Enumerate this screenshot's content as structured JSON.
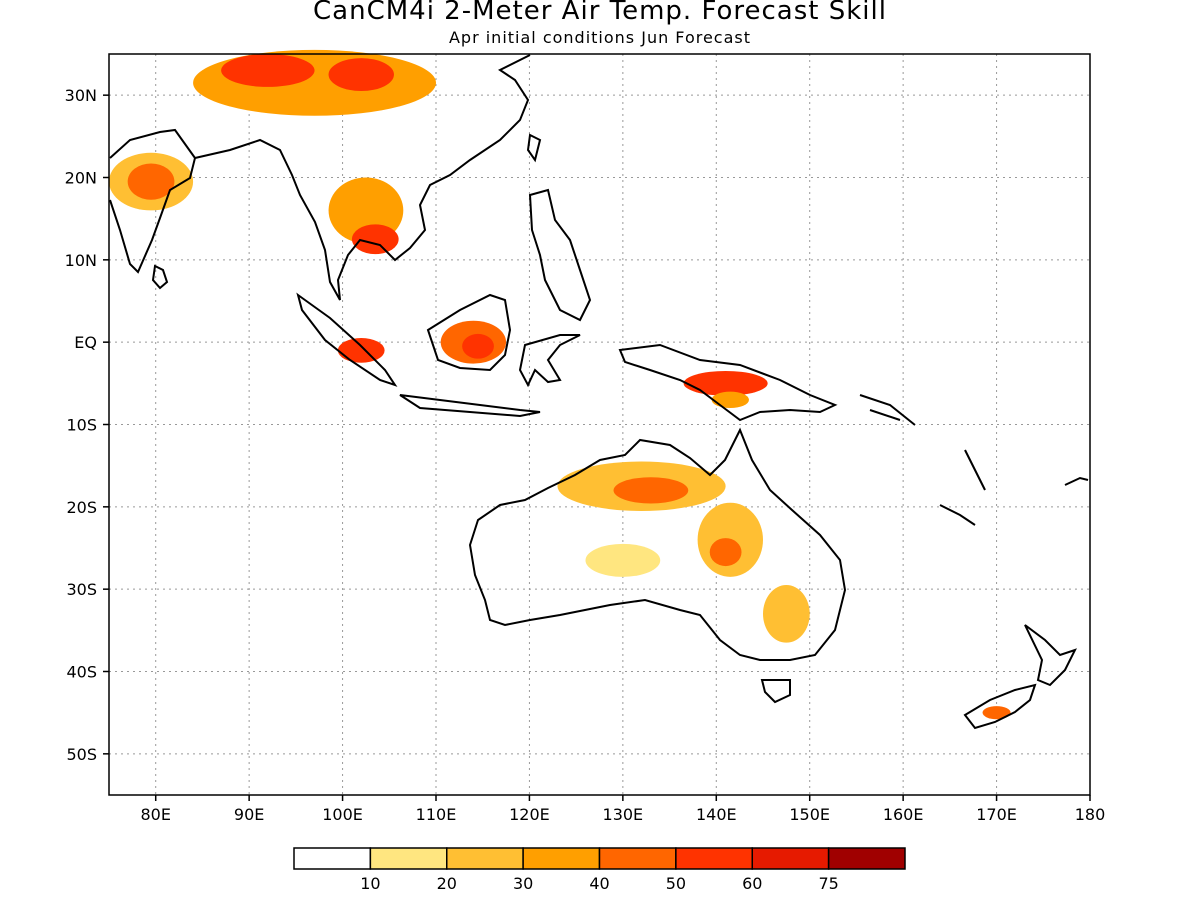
{
  "title": "CanCM4i 2-Meter Air Temp. Forecast Skill",
  "subtitle": "Apr initial conditions  Jun Forecast",
  "map": {
    "lon_range": [
      75,
      180
    ],
    "lat_range": [
      -55,
      35
    ],
    "lon_ticks": [
      {
        "lon": 80,
        "label": "80E"
      },
      {
        "lon": 90,
        "label": "90E"
      },
      {
        "lon": 100,
        "label": "100E"
      },
      {
        "lon": 110,
        "label": "110E"
      },
      {
        "lon": 120,
        "label": "120E"
      },
      {
        "lon": 130,
        "label": "130E"
      },
      {
        "lon": 140,
        "label": "140E"
      },
      {
        "lon": 150,
        "label": "150E"
      },
      {
        "lon": 160,
        "label": "160E"
      },
      {
        "lon": 170,
        "label": "170E"
      },
      {
        "lon": 180,
        "label": "180"
      }
    ],
    "lat_ticks": [
      {
        "lat": 30,
        "label": "30N"
      },
      {
        "lat": 20,
        "label": "20N"
      },
      {
        "lat": 10,
        "label": "10N"
      },
      {
        "lat": 0,
        "label": "EQ"
      },
      {
        "lat": -10,
        "label": "10S"
      },
      {
        "lat": -20,
        "label": "20S"
      },
      {
        "lat": -30,
        "label": "30S"
      },
      {
        "lat": -40,
        "label": "40S"
      },
      {
        "lat": -50,
        "label": "50S"
      }
    ],
    "grid": "dotted"
  },
  "colorbar": {
    "colors": [
      "#ffffff",
      "#ffe680",
      "#ffbf33",
      "#ff9f00",
      "#ff6600",
      "#ff3300",
      "#e61a00",
      "#a00000"
    ],
    "labels": [
      "10",
      "20",
      "30",
      "40",
      "50",
      "60",
      "75"
    ]
  },
  "regions": [
    {
      "name": "india",
      "blobs": [
        {
          "lon": 79.5,
          "lat": 19.5,
          "rx": 4.5,
          "ry": 3.5,
          "level": 2
        },
        {
          "lon": 79.5,
          "lat": 19.5,
          "rx": 2.5,
          "ry": 2.2,
          "level": 4
        }
      ]
    },
    {
      "name": "china",
      "blobs": [
        {
          "lon": 97,
          "lat": 31.5,
          "rx": 13,
          "ry": 4,
          "level": 3
        },
        {
          "lon": 92,
          "lat": 33,
          "rx": 5,
          "ry": 2,
          "level": 5
        },
        {
          "lon": 102,
          "lat": 32.5,
          "rx": 3.5,
          "ry": 2,
          "level": 5
        }
      ]
    },
    {
      "name": "indochina",
      "blobs": [
        {
          "lon": 102.5,
          "lat": 16,
          "rx": 4,
          "ry": 4,
          "level": 3
        },
        {
          "lon": 103.5,
          "lat": 12.5,
          "rx": 2.5,
          "ry": 1.8,
          "level": 5
        }
      ]
    },
    {
      "name": "borneo",
      "blobs": [
        {
          "lon": 114,
          "lat": 0,
          "rx": 3.5,
          "ry": 2.6,
          "level": 4
        },
        {
          "lon": 114.5,
          "lat": -0.5,
          "rx": 1.7,
          "ry": 1.5,
          "level": 5
        }
      ]
    },
    {
      "name": "sumatra",
      "blobs": [
        {
          "lon": 102,
          "lat": -1,
          "rx": 2.5,
          "ry": 1.5,
          "level": 5
        }
      ]
    },
    {
      "name": "new-guinea",
      "blobs": [
        {
          "lon": 141,
          "lat": -5,
          "rx": 4.5,
          "ry": 1.5,
          "level": 5
        },
        {
          "lon": 141.5,
          "lat": -7,
          "rx": 2,
          "ry": 1,
          "level": 3
        }
      ]
    },
    {
      "name": "north-australia",
      "blobs": [
        {
          "lon": 132,
          "lat": -17.5,
          "rx": 9,
          "ry": 3,
          "level": 2
        },
        {
          "lon": 133,
          "lat": -18,
          "rx": 4,
          "ry": 1.6,
          "level": 4
        }
      ]
    },
    {
      "name": "east-australia",
      "blobs": [
        {
          "lon": 141.5,
          "lat": -24,
          "rx": 3.5,
          "ry": 4.5,
          "level": 2
        },
        {
          "lon": 141,
          "lat": -25.5,
          "rx": 1.7,
          "ry": 1.7,
          "level": 4
        },
        {
          "lon": 147.5,
          "lat": -33,
          "rx": 2.5,
          "ry": 3.5,
          "level": 2
        }
      ]
    },
    {
      "name": "central-australia",
      "blobs": [
        {
          "lon": 130,
          "lat": -26.5,
          "rx": 4,
          "ry": 2,
          "level": 1
        }
      ]
    },
    {
      "name": "new-zealand",
      "blobs": [
        {
          "lon": 170,
          "lat": -45,
          "rx": 1.5,
          "ry": 0.8,
          "level": 4
        }
      ]
    }
  ]
}
